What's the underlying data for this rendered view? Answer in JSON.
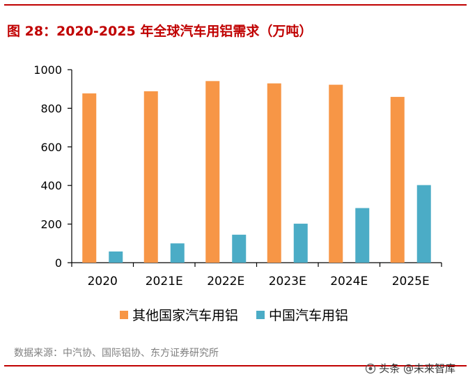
{
  "title": "图 28：2020-2025 年全球汽车用铝需求（万吨）",
  "chart_data": {
    "type": "bar",
    "categories": [
      "2020",
      "2021E",
      "2022E",
      "2023E",
      "2024E",
      "2025E"
    ],
    "series": [
      {
        "name": "其他国家汽车用铝",
        "color": "#f79646",
        "values": [
          877,
          888,
          941,
          929,
          922,
          859
        ]
      },
      {
        "name": "中国汽车用铝",
        "color": "#4bacc6",
        "values": [
          58,
          100,
          145,
          202,
          283,
          402
        ]
      }
    ],
    "ylim": [
      0,
      1000
    ],
    "yticks": [
      0,
      200,
      400,
      600,
      800,
      1000
    ],
    "xlabel": "",
    "ylabel": "",
    "legend_position": "bottom"
  },
  "source": "数据来源：中汽协、国际铝协、东方证券研究所",
  "watermark": "头条 @未来智库"
}
